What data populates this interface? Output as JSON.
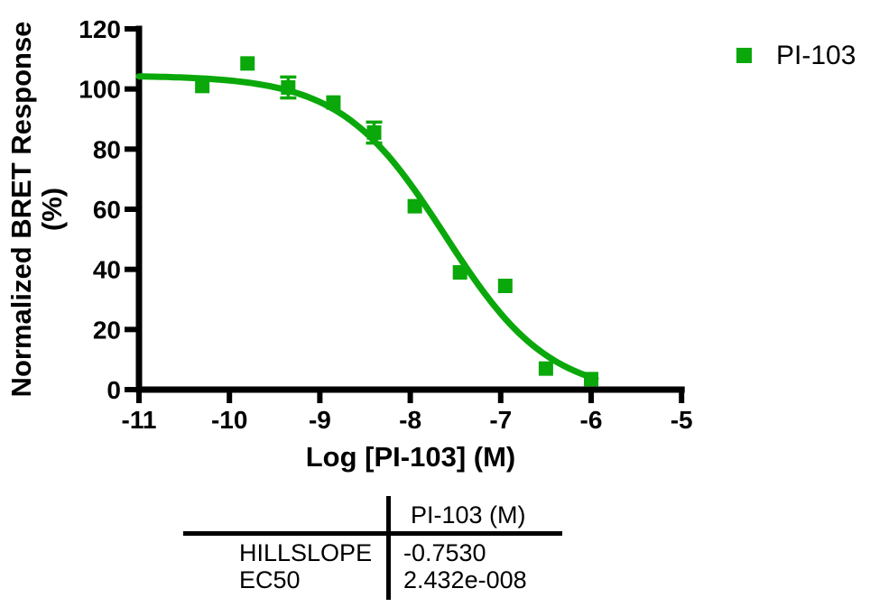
{
  "chart_data": {
    "type": "scatter",
    "subtype": "dose-response curve with sigmoidal fit",
    "title": "",
    "xlabel": "Log [PI-103] (M)",
    "ylabel_line1": "Normalized BRET Response",
    "ylabel_line2": "(%)",
    "xlim": [
      -11,
      -5
    ],
    "ylim": [
      0,
      120
    ],
    "x_ticks": [
      -11,
      -10,
      -9,
      -8,
      -7,
      -6,
      -5
    ],
    "y_ticks": [
      0,
      20,
      40,
      60,
      80,
      100,
      120
    ],
    "grid": false,
    "axis_color": "#000000",
    "series": [
      {
        "name": "PI-103",
        "color": "#0aa80a",
        "marker": "square",
        "points": [
          {
            "x": -10.3,
            "y": 101
          },
          {
            "x": -9.8,
            "y": 108.5
          },
          {
            "x": -9.35,
            "y": 100.5,
            "err": 3.5
          },
          {
            "x": -8.85,
            "y": 95.5
          },
          {
            "x": -8.4,
            "y": 85.5,
            "err": 3.5
          },
          {
            "x": -7.95,
            "y": 61
          },
          {
            "x": -7.45,
            "y": 39
          },
          {
            "x": -6.95,
            "y": 34.5
          },
          {
            "x": -6.5,
            "y": 7
          },
          {
            "x": -6.0,
            "y": 3.5
          }
        ],
        "fit": {
          "model": "sigmoidal dose-response (variable slope)",
          "top": 104.5,
          "bottom": -2,
          "logEC50": -7.614,
          "hillslope": -0.753,
          "x_start": -11,
          "x_end": -5.95
        }
      }
    ],
    "legend": {
      "position": "top-right",
      "entries": [
        {
          "label": "PI-103",
          "color": "#0aa80a",
          "marker": "square"
        }
      ]
    }
  },
  "results_table": {
    "corner_header": "",
    "column_header": "PI-103 (M)",
    "rows": [
      {
        "label": "HILLSLOPE",
        "value": "-0.7530"
      },
      {
        "label": "EC50",
        "value": "2.432e-008"
      }
    ]
  }
}
